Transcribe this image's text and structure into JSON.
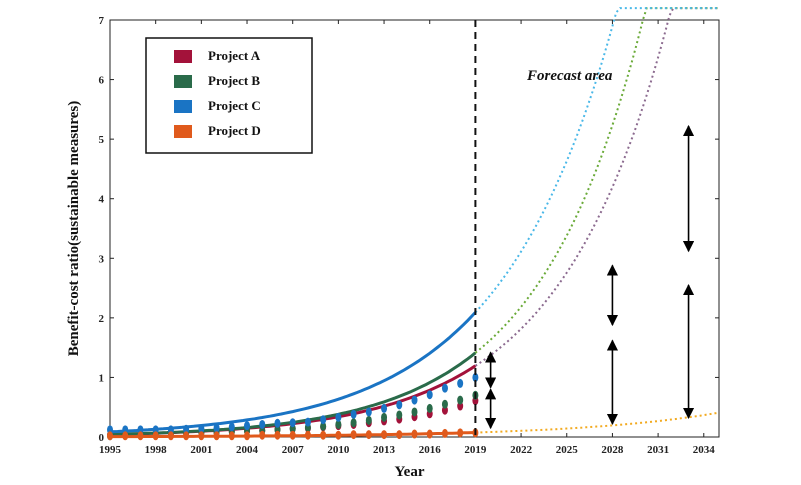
{
  "chart_data": {
    "type": "line",
    "xlabel": "Year",
    "ylabel": "Benefit-cost ratio(sustainable measures)",
    "xlim": [
      1995,
      2035
    ],
    "ylim": [
      0,
      7
    ],
    "x_ticks": [
      "1995",
      "1998",
      "2001",
      "2004",
      "2007",
      "2010",
      "2013",
      "2016",
      "2019",
      "2022",
      "2025",
      "2028",
      "2031",
      "2034"
    ],
    "y_ticks": [
      "0",
      "1",
      "2",
      "3",
      "4",
      "5",
      "6",
      "7"
    ],
    "forecast_boundary": 2019,
    "annotation": "Forecast area",
    "legend_position": "top-left",
    "series": [
      {
        "name": "Project A",
        "color": "#a3123a",
        "forecast_color": "#8b6a8f",
        "fit": {
          "a": 0.042,
          "r": 0.1395
        },
        "x": [
          1995,
          1996,
          1997,
          1998,
          1999,
          2000,
          2001,
          2002,
          2003,
          2004,
          2005,
          2006,
          2007,
          2008,
          2009,
          2010,
          2011,
          2012,
          2013,
          2014,
          2015,
          2016,
          2017,
          2018,
          2019
        ],
        "values": [
          0.03,
          0.04,
          0.04,
          0.05,
          0.06,
          0.07,
          0.08,
          0.08,
          0.09,
          0.1,
          0.11,
          0.13,
          0.14,
          0.15,
          0.17,
          0.19,
          0.21,
          0.24,
          0.27,
          0.3,
          0.34,
          0.39,
          0.45,
          0.52,
          0.61
        ]
      },
      {
        "name": "Project B",
        "color": "#2a6b4a",
        "forecast_color": "#6aaa38",
        "fit": {
          "a": 0.043,
          "r": 0.1455
        },
        "x": [
          1995,
          1996,
          1997,
          1998,
          1999,
          2000,
          2001,
          2002,
          2003,
          2004,
          2005,
          2006,
          2007,
          2008,
          2009,
          2010,
          2011,
          2012,
          2013,
          2014,
          2015,
          2016,
          2017,
          2018,
          2019
        ],
        "values": [
          0.02,
          0.03,
          0.03,
          0.04,
          0.05,
          0.06,
          0.07,
          0.08,
          0.09,
          0.1,
          0.11,
          0.12,
          0.14,
          0.16,
          0.18,
          0.21,
          0.24,
          0.28,
          0.33,
          0.37,
          0.42,
          0.48,
          0.55,
          0.62,
          0.7
        ]
      },
      {
        "name": "Project C",
        "color": "#1a74c4",
        "forecast_color": "#4ab8e8",
        "fit": {
          "a": 0.087,
          "r": 0.1325
        },
        "x": [
          1995,
          1996,
          1997,
          1998,
          1999,
          2000,
          2001,
          2002,
          2003,
          2004,
          2005,
          2006,
          2007,
          2008,
          2009,
          2010,
          2011,
          2012,
          2013,
          2014,
          2015,
          2016,
          2017,
          2018,
          2019
        ],
        "values": [
          0.12,
          0.12,
          0.12,
          0.12,
          0.12,
          0.13,
          0.14,
          0.15,
          0.17,
          0.19,
          0.21,
          0.23,
          0.24,
          0.25,
          0.29,
          0.33,
          0.38,
          0.42,
          0.48,
          0.54,
          0.62,
          0.71,
          0.82,
          0.9,
          1.0
        ]
      },
      {
        "name": "Project D",
        "color": "#e05a1c",
        "forecast_color": "#f2aa20",
        "fit": {
          "a": 0.006,
          "r": 0.1055
        },
        "x": [
          1995,
          1996,
          1997,
          1998,
          1999,
          2000,
          2001,
          2002,
          2003,
          2004,
          2005,
          2006,
          2007,
          2008,
          2009,
          2010,
          2011,
          2012,
          2013,
          2014,
          2015,
          2016,
          2017,
          2018,
          2019
        ],
        "values": [
          0.02,
          0.02,
          0.02,
          0.02,
          0.02,
          0.02,
          0.02,
          0.02,
          0.02,
          0.02,
          0.03,
          0.03,
          0.03,
          0.03,
          0.03,
          0.03,
          0.04,
          0.04,
          0.04,
          0.04,
          0.05,
          0.05,
          0.06,
          0.07,
          0.07
        ]
      }
    ],
    "arrows": [
      {
        "x": 2020,
        "y1": 1.42,
        "y2": 0.83
      },
      {
        "x": 2020,
        "y1": 0.8,
        "y2": 0.15
      },
      {
        "x": 2028,
        "y1": 2.88,
        "y2": 1.88
      },
      {
        "x": 2028,
        "y1": 1.62,
        "y2": 0.22
      },
      {
        "x": 2033,
        "y1": 5.22,
        "y2": 3.12
      },
      {
        "x": 2033,
        "y1": 2.55,
        "y2": 0.32
      }
    ]
  }
}
